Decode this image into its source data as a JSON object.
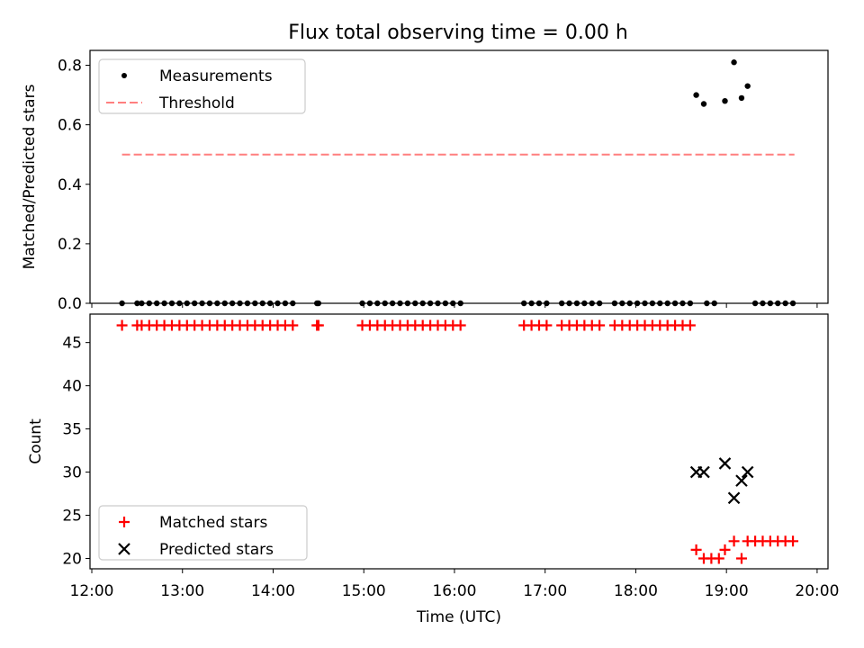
{
  "figure": {
    "title": "Flux total observing time = 0.00 h"
  },
  "chart_data": [
    {
      "type": "scatter",
      "ylabel": "Matched/Predicted stars",
      "xlabel": "",
      "xlim": [
        "12:00",
        "20:00"
      ],
      "xlim_data": [
        11.98,
        20.12
      ],
      "ylim": [
        0.0,
        0.85
      ],
      "yticks": [
        "0.0",
        "0.2",
        "0.4",
        "0.6",
        "0.8"
      ],
      "ytick_values": [
        0.0,
        0.2,
        0.4,
        0.6,
        0.8
      ],
      "legend_position": "top-left",
      "series": [
        {
          "name": "Measurements",
          "marker": "dot",
          "color": "#000000",
          "x": [
            "12:20",
            "12:30",
            "12:33",
            "12:38",
            "12:43",
            "12:48",
            "12:53",
            "12:58",
            "13:03",
            "13:08",
            "13:13",
            "13:18",
            "13:23",
            "13:28",
            "13:33",
            "13:38",
            "13:43",
            "13:48",
            "13:53",
            "13:58",
            "14:03",
            "14:08",
            "14:13",
            "14:29",
            "14:30",
            "14:59",
            "15:04",
            "15:09",
            "15:14",
            "15:19",
            "15:24",
            "15:29",
            "15:34",
            "15:39",
            "15:44",
            "15:49",
            "15:54",
            "15:59",
            "16:04",
            "16:46",
            "16:51",
            "16:56",
            "17:01",
            "17:11",
            "17:16",
            "17:21",
            "17:26",
            "17:31",
            "17:36",
            "17:46",
            "17:51",
            "17:56",
            "18:01",
            "18:06",
            "18:11",
            "18:16",
            "18:21",
            "18:26",
            "18:31",
            "18:36",
            "18:47",
            "18:52",
            "19:19",
            "19:24",
            "19:29",
            "19:34",
            "19:39",
            "19:44",
            "18:40",
            "18:45",
            "18:59",
            "19:05",
            "19:10",
            "19:14"
          ],
          "y": [
            0,
            0,
            0,
            0,
            0,
            0,
            0,
            0,
            0,
            0,
            0,
            0,
            0,
            0,
            0,
            0,
            0,
            0,
            0,
            0,
            0,
            0,
            0,
            0,
            0,
            0,
            0,
            0,
            0,
            0,
            0,
            0,
            0,
            0,
            0,
            0,
            0,
            0,
            0,
            0,
            0,
            0,
            0,
            0,
            0,
            0,
            0,
            0,
            0,
            0,
            0,
            0,
            0,
            0,
            0,
            0,
            0,
            0,
            0,
            0,
            0,
            0,
            0,
            0,
            0,
            0,
            0,
            0,
            0.7,
            0.67,
            0.68,
            0.81,
            0.69,
            0.73
          ]
        },
        {
          "name": "Threshold",
          "marker": "dashed-line",
          "color": "#ff7f7f",
          "x": [
            "12:20",
            "19:45"
          ],
          "y": [
            0.5,
            0.5
          ]
        }
      ]
    },
    {
      "type": "scatter",
      "ylabel": "Count",
      "xlabel": "Time (UTC)",
      "xlim": [
        "12:00",
        "20:00"
      ],
      "xlim_data": [
        11.98,
        20.12
      ],
      "xticks": [
        "12:00",
        "13:00",
        "14:00",
        "15:00",
        "16:00",
        "17:00",
        "18:00",
        "19:00",
        "20:00"
      ],
      "xtick_values": [
        12,
        13,
        14,
        15,
        16,
        17,
        18,
        19,
        20
      ],
      "ylim": [
        18.8,
        48.3
      ],
      "yticks": [
        "20",
        "25",
        "30",
        "35",
        "40",
        "45"
      ],
      "ytick_values": [
        20,
        25,
        30,
        35,
        40,
        45
      ],
      "legend_position": "bottom-left",
      "series": [
        {
          "name": "Matched stars",
          "marker": "plus",
          "color": "#ff0000",
          "x": [
            "12:20",
            "12:30",
            "12:33",
            "12:38",
            "12:43",
            "12:48",
            "12:53",
            "12:58",
            "13:03",
            "13:08",
            "13:13",
            "13:18",
            "13:23",
            "13:28",
            "13:33",
            "13:38",
            "13:43",
            "13:48",
            "13:53",
            "13:58",
            "14:03",
            "14:08",
            "14:13",
            "14:29",
            "14:30",
            "14:59",
            "15:04",
            "15:09",
            "15:14",
            "15:19",
            "15:24",
            "15:29",
            "15:34",
            "15:39",
            "15:44",
            "15:49",
            "15:54",
            "15:59",
            "16:04",
            "16:46",
            "16:51",
            "16:56",
            "17:01",
            "17:11",
            "17:16",
            "17:21",
            "17:26",
            "17:31",
            "17:36",
            "17:46",
            "17:51",
            "17:56",
            "18:01",
            "18:06",
            "18:11",
            "18:16",
            "18:21",
            "18:26",
            "18:31",
            "18:36",
            "18:40",
            "18:45",
            "18:50",
            "18:55",
            "18:59",
            "19:05",
            "19:10",
            "19:14",
            "19:19",
            "19:24",
            "19:29",
            "19:34",
            "19:39",
            "19:44"
          ],
          "y": [
            47,
            47,
            47,
            47,
            47,
            47,
            47,
            47,
            47,
            47,
            47,
            47,
            47,
            47,
            47,
            47,
            47,
            47,
            47,
            47,
            47,
            47,
            47,
            47,
            47,
            47,
            47,
            47,
            47,
            47,
            47,
            47,
            47,
            47,
            47,
            47,
            47,
            47,
            47,
            47,
            47,
            47,
            47,
            47,
            47,
            47,
            47,
            47,
            47,
            47,
            47,
            47,
            47,
            47,
            47,
            47,
            47,
            47,
            47,
            47,
            21,
            20,
            20,
            20,
            21,
            22,
            20,
            22,
            22,
            22,
            22,
            22,
            22,
            22
          ]
        },
        {
          "name": "Predicted stars",
          "marker": "x",
          "color": "#000000",
          "x": [
            "18:40",
            "18:45",
            "18:59",
            "19:05",
            "19:10",
            "19:14"
          ],
          "y": [
            30,
            30,
            31,
            27,
            29,
            30
          ]
        }
      ]
    }
  ]
}
